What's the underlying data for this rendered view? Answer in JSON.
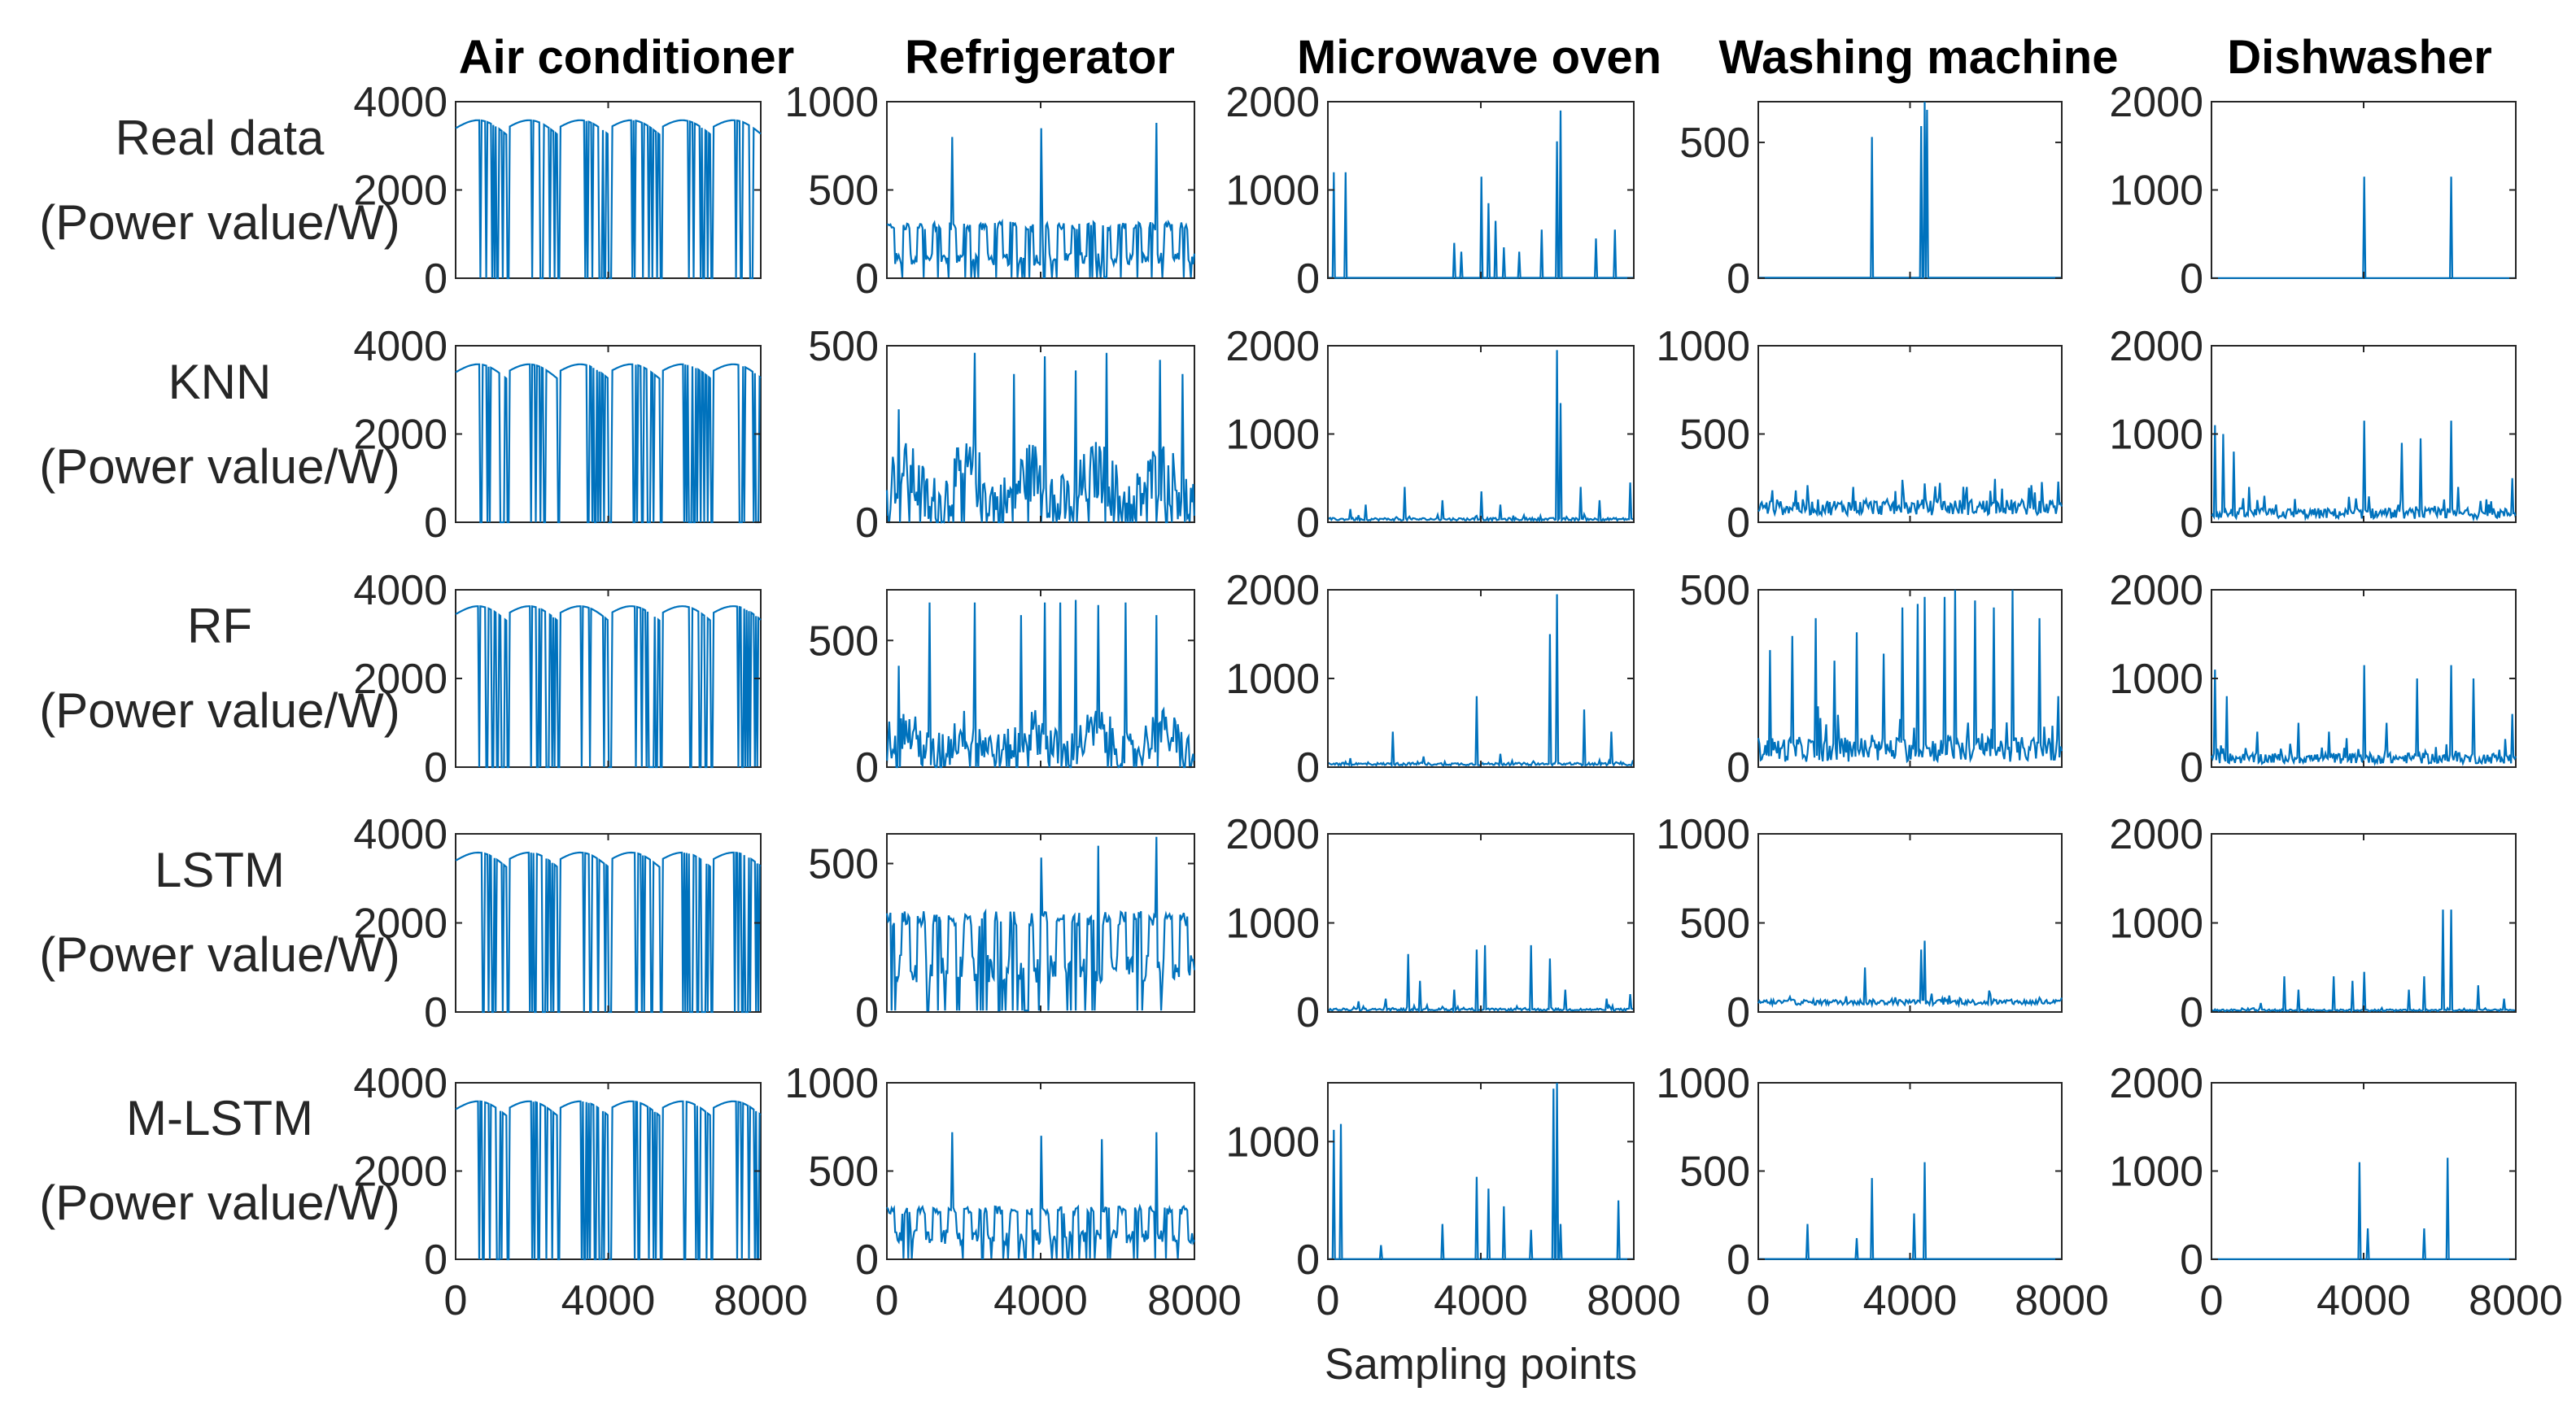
{
  "chart_data": {
    "type": "line",
    "figure_xlabel": "Sampling points",
    "series_color": "#0072BD",
    "column_titles": [
      "Air conditioner",
      "Refrigerator",
      "Microwave oven",
      "Washing machine",
      "Dishwasher"
    ],
    "row_labels": [
      {
        "name": "Real data",
        "unit": "(Power value/W)"
      },
      {
        "name": "KNN",
        "unit": "(Power value/W)"
      },
      {
        "name": "RF",
        "unit": "(Power value/W)"
      },
      {
        "name": "LSTM",
        "unit": "(Power value/W)"
      },
      {
        "name": "M-LSTM",
        "unit": "(Power value/W)"
      }
    ],
    "xlim": [
      0,
      8000
    ],
    "xticks": [
      "0",
      "4000",
      "8000"
    ],
    "panels": [
      [
        {
          "ylim": [
            0,
            4000
          ],
          "yticks": [
            "0",
            "2000",
            "4000"
          ],
          "profile": "ac",
          "base": 3400,
          "spike_count": 0,
          "spike_height": 0,
          "spikes": []
        },
        {
          "ylim": [
            0,
            1000
          ],
          "yticks": [
            "0",
            "500",
            "1000"
          ],
          "profile": "fridge",
          "base": 120,
          "band": 320,
          "noise": 60,
          "spikes": [
            [
              1700,
              800
            ],
            [
              4000,
              850
            ],
            [
              7000,
              880
            ]
          ]
        },
        {
          "ylim": [
            0,
            2000
          ],
          "yticks": [
            "0",
            "1000",
            "2000"
          ],
          "profile": "sparse",
          "base": 5,
          "noise": 0,
          "spikes": [
            [
              150,
              1200
            ],
            [
              450,
              1200
            ],
            [
              3300,
              400
            ],
            [
              3500,
              300
            ],
            [
              4000,
              1150
            ],
            [
              4200,
              850
            ],
            [
              4400,
              650
            ],
            [
              4600,
              350
            ],
            [
              5000,
              300
            ],
            [
              5600,
              550
            ],
            [
              6000,
              1550
            ],
            [
              6100,
              1900
            ],
            [
              7000,
              450
            ],
            [
              7500,
              550
            ]
          ]
        },
        {
          "ylim": [
            0,
            650
          ],
          "yticks": [
            "0",
            "500"
          ],
          "profile": "sparse",
          "base": 2,
          "noise": 0,
          "spikes": [
            [
              3000,
              520
            ],
            [
              4300,
              560
            ],
            [
              4400,
              650
            ],
            [
              4450,
              620
            ]
          ]
        },
        {
          "ylim": [
            0,
            2000
          ],
          "yticks": [
            "0",
            "1000",
            "2000"
          ],
          "profile": "sparse",
          "base": 2,
          "noise": 0,
          "spikes": [
            [
              4000,
              1150
            ],
            [
              6300,
              1150
            ]
          ]
        }
      ],
      [
        {
          "ylim": [
            0,
            4000
          ],
          "yticks": [
            "0",
            "2000",
            "4000"
          ],
          "profile": "ac",
          "base": 3400,
          "spikes": []
        },
        {
          "ylim": [
            0,
            500
          ],
          "yticks": [
            "0",
            "500"
          ],
          "profile": "fridge-noisy",
          "base": 130,
          "band": 160,
          "noise": 90,
          "spikes": [
            [
              300,
              320
            ],
            [
              2300,
              480
            ],
            [
              3300,
              420
            ],
            [
              4100,
              470
            ],
            [
              4900,
              430
            ],
            [
              5700,
              480
            ],
            [
              7100,
              460
            ],
            [
              7700,
              420
            ]
          ]
        },
        {
          "ylim": [
            0,
            2000
          ],
          "yticks": [
            "0",
            "1000",
            "2000"
          ],
          "profile": "sparse",
          "base": 20,
          "noise": 30,
          "spikes": [
            [
              600,
              150
            ],
            [
              1000,
              200
            ],
            [
              2000,
              400
            ],
            [
              3000,
              250
            ],
            [
              4000,
              350
            ],
            [
              4500,
              200
            ],
            [
              6000,
              1950
            ],
            [
              6100,
              1350
            ],
            [
              6600,
              400
            ],
            [
              7100,
              250
            ],
            [
              7900,
              450
            ]
          ]
        },
        {
          "ylim": [
            0,
            1000
          ],
          "yticks": [
            "0",
            "500",
            "1000"
          ],
          "profile": "sparse",
          "base": 40,
          "noise": 90,
          "spikes": [
            [
              1000,
              180
            ],
            [
              2500,
              200
            ],
            [
              3800,
              240
            ],
            [
              4400,
              220
            ],
            [
              5500,
              200
            ],
            [
              7200,
              210
            ],
            [
              7900,
              230
            ]
          ]
        },
        {
          "ylim": [
            0,
            2000
          ],
          "yticks": [
            "0",
            "1000",
            "2000"
          ],
          "profile": "sparse",
          "base": 40,
          "noise": 120,
          "spikes": [
            [
              100,
              1100
            ],
            [
              300,
              1000
            ],
            [
              600,
              800
            ],
            [
              1000,
              400
            ],
            [
              1400,
              300
            ],
            [
              4000,
              1150
            ],
            [
              5000,
              900
            ],
            [
              5500,
              950
            ],
            [
              6300,
              1150
            ],
            [
              6500,
              400
            ],
            [
              7900,
              500
            ]
          ]
        }
      ],
      [
        {
          "ylim": [
            0,
            4000
          ],
          "yticks": [
            "0",
            "2000",
            "4000"
          ],
          "profile": "ac",
          "base": 3450,
          "spikes": []
        },
        {
          "ylim": [
            0,
            700
          ],
          "yticks": [
            "0",
            "500"
          ],
          "profile": "fridge-noisy",
          "base": 120,
          "band": 160,
          "noise": 90,
          "spikes": [
            [
              300,
              400
            ],
            [
              1100,
              650
            ],
            [
              2300,
              650
            ],
            [
              3500,
              600
            ],
            [
              4100,
              650
            ],
            [
              4500,
              650
            ],
            [
              4900,
              660
            ],
            [
              5500,
              640
            ],
            [
              6200,
              650
            ],
            [
              7000,
              600
            ]
          ]
        },
        {
          "ylim": [
            0,
            2000
          ],
          "yticks": [
            "0",
            "1000",
            "2000"
          ],
          "profile": "sparse",
          "base": 20,
          "noise": 30,
          "spikes": [
            [
              600,
              100
            ],
            [
              1700,
              400
            ],
            [
              2500,
              120
            ],
            [
              3900,
              800
            ],
            [
              4500,
              150
            ],
            [
              5800,
              1500
            ],
            [
              6000,
              1950
            ],
            [
              6700,
              650
            ],
            [
              7400,
              400
            ]
          ]
        },
        {
          "ylim": [
            0,
            500
          ],
          "yticks": [
            "0",
            "500"
          ],
          "profile": "sparse",
          "base": 15,
          "noise": 70,
          "spikes": [
            [
              300,
              330
            ],
            [
              900,
              370
            ],
            [
              1500,
              420
            ],
            [
              2000,
              300
            ],
            [
              2600,
              380
            ],
            [
              3300,
              320
            ],
            [
              3800,
              450
            ],
            [
              4200,
              460
            ],
            [
              4400,
              480
            ],
            [
              4900,
              480
            ],
            [
              5200,
              500
            ],
            [
              5700,
              470
            ],
            [
              6200,
              450
            ],
            [
              6700,
              500
            ],
            [
              7400,
              420
            ],
            [
              7900,
              200
            ]
          ]
        },
        {
          "ylim": [
            0,
            2000
          ],
          "yticks": [
            "0",
            "1000",
            "2000"
          ],
          "profile": "sparse",
          "base": 40,
          "noise": 120,
          "spikes": [
            [
              100,
              1100
            ],
            [
              400,
              800
            ],
            [
              1200,
              400
            ],
            [
              2300,
              500
            ],
            [
              3100,
              400
            ],
            [
              4000,
              1150
            ],
            [
              4600,
              500
            ],
            [
              5400,
              1000
            ],
            [
              6300,
              1150
            ],
            [
              6900,
              1000
            ],
            [
              7900,
              600
            ]
          ]
        }
      ],
      [
        {
          "ylim": [
            0,
            4000
          ],
          "yticks": [
            "0",
            "2000",
            "4000"
          ],
          "profile": "ac",
          "base": 3400,
          "spikes": []
        },
        {
          "ylim": [
            0,
            600
          ],
          "yticks": [
            "0",
            "500"
          ],
          "profile": "fridge",
          "base": 160,
          "band": 340,
          "noise": 40,
          "spikes": [
            [
              4000,
              520
            ],
            [
              5500,
              560
            ],
            [
              7000,
              590
            ]
          ]
        },
        {
          "ylim": [
            0,
            2000
          ],
          "yticks": [
            "0",
            "1000",
            "2000"
          ],
          "profile": "sparse",
          "base": 15,
          "noise": 25,
          "spikes": [
            [
              800,
              120
            ],
            [
              1500,
              150
            ],
            [
              2100,
              650
            ],
            [
              2400,
              350
            ],
            [
              3300,
              250
            ],
            [
              3900,
              700
            ],
            [
              4100,
              750
            ],
            [
              5300,
              750
            ],
            [
              5800,
              600
            ],
            [
              6200,
              250
            ],
            [
              7300,
              150
            ],
            [
              7900,
              200
            ]
          ]
        },
        {
          "ylim": [
            0,
            1000
          ],
          "yticks": [
            "0",
            "500",
            "1000"
          ],
          "profile": "sparse",
          "base": 40,
          "noise": 30,
          "spikes": [
            [
              800,
              70
            ],
            [
              2800,
              250
            ],
            [
              4300,
              350
            ],
            [
              4400,
              400
            ],
            [
              6100,
              120
            ],
            [
              7400,
              80
            ]
          ]
        },
        {
          "ylim": [
            0,
            2000
          ],
          "yticks": [
            "0",
            "1000",
            "2000"
          ],
          "profile": "sparse",
          "base": 10,
          "noise": 20,
          "spikes": [
            [
              1300,
              100
            ],
            [
              1900,
              400
            ],
            [
              2300,
              250
            ],
            [
              3200,
              400
            ],
            [
              3700,
              350
            ],
            [
              4000,
              450
            ],
            [
              5200,
              250
            ],
            [
              5600,
              400
            ],
            [
              6100,
              1150
            ],
            [
              6300,
              1150
            ],
            [
              7000,
              300
            ],
            [
              7700,
              150
            ]
          ]
        }
      ],
      [
        {
          "ylim": [
            0,
            4000
          ],
          "yticks": [
            "0",
            "2000",
            "4000"
          ],
          "profile": "ac",
          "base": 3400,
          "spikes": []
        },
        {
          "ylim": [
            0,
            1000
          ],
          "yticks": [
            "0",
            "500",
            "1000"
          ],
          "profile": "fridge",
          "base": 140,
          "band": 300,
          "noise": 40,
          "spikes": [
            [
              1700,
              720
            ],
            [
              4000,
              700
            ],
            [
              5600,
              680
            ],
            [
              7000,
              720
            ]
          ]
        },
        {
          "ylim": [
            0,
            1500
          ],
          "yticks": [
            "0",
            "1000"
          ],
          "profile": "sparse",
          "base": 2,
          "noise": 0,
          "spikes": [
            [
              150,
              1100
            ],
            [
              350,
              1150
            ],
            [
              1400,
              120
            ],
            [
              3000,
              300
            ],
            [
              3900,
              700
            ],
            [
              4200,
              600
            ],
            [
              4600,
              450
            ],
            [
              5300,
              250
            ],
            [
              5900,
              1450
            ],
            [
              6000,
              1500
            ],
            [
              6100,
              300
            ],
            [
              7600,
              500
            ]
          ]
        },
        {
          "ylim": [
            0,
            1000
          ],
          "yticks": [
            "0",
            "500",
            "1000"
          ],
          "profile": "sparse",
          "base": 2,
          "noise": 0,
          "spikes": [
            [
              1300,
              200
            ],
            [
              2600,
              120
            ],
            [
              3000,
              460
            ],
            [
              4100,
              260
            ],
            [
              4400,
              550
            ]
          ]
        },
        {
          "ylim": [
            0,
            2000
          ],
          "yticks": [
            "0",
            "1000",
            "2000"
          ],
          "profile": "sparse",
          "base": 2,
          "noise": 0,
          "spikes": [
            [
              3900,
              1100
            ],
            [
              4100,
              350
            ],
            [
              5600,
              350
            ],
            [
              6200,
              1150
            ]
          ]
        }
      ]
    ]
  }
}
